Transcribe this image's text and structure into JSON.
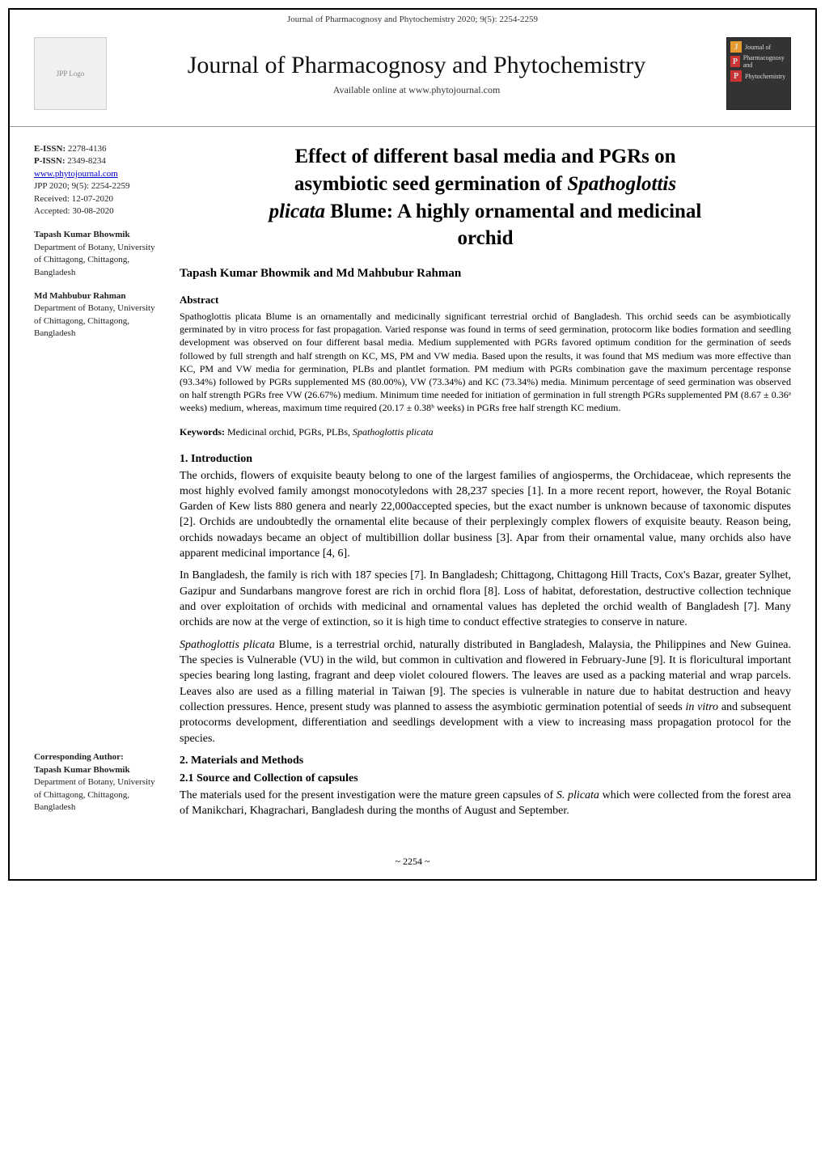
{
  "running_header": "Journal of Pharmacognosy and Phytochemistry 2020; 9(5): 2254-2259",
  "masthead": {
    "journal_title": "Journal of Pharmacognosy and Phytochemistry",
    "available_line": "Available online at  www.phytojournal.com",
    "logo_left_alt": "JPP Logo",
    "badge_j": "J",
    "badge_p1": "P",
    "badge_p2": "P",
    "badge_text1": "Journal of",
    "badge_text2": "Pharmacognosy and",
    "badge_text3": "Phytochemistry"
  },
  "sidebar": {
    "eissn_label": "E-ISSN:",
    "eissn": "2278-4136",
    "pissn_label": "P-ISSN:",
    "pissn": "2349-8234",
    "website": "www.phytojournal.com",
    "citation": "JPP 2020; 9(5): 2254-2259",
    "received": "Received: 12-07-2020",
    "accepted": "Accepted: 30-08-2020",
    "author1_name": "Tapash Kumar Bhowmik",
    "author1_affil": "Department of Botany, University of Chittagong, Chittagong, Bangladesh",
    "author2_name": "Md Mahbubur Rahman",
    "author2_affil": "Department of Botany, University of Chittagong, Chittagong, Bangladesh",
    "corr_label": "Corresponding Author:",
    "corr_name": "Tapash Kumar Bhowmik",
    "corr_affil": "Department of Botany, University of Chittagong, Chittagong, Bangladesh"
  },
  "article": {
    "title_l1": "Effect of different basal media and PGRs on",
    "title_l2": "asymbiotic seed germination of ",
    "title_species": "Spathoglottis",
    "title_l3_species": "plicata",
    "title_l3_rest": " Blume: A highly ornamental and medicinal",
    "title_l4": "orchid",
    "authors": "Tapash Kumar Bhowmik and Md Mahbubur Rahman",
    "abstract_head": "Abstract",
    "abstract_body": "Spathoglottis plicata Blume is an ornamentally and medicinally significant terrestrial orchid of Bangladesh. This orchid seeds can be asymbiotically germinated by in vitro process for fast propagation. Varied response was found in terms of seed germination, protocorm like bodies formation and seedling development was observed on four different basal media. Medium supplemented with PGRs favored optimum condition for the germination of seeds followed by full strength and half strength on KC, MS, PM and VW media. Based upon the results, it was found that MS medium was more effective than KC, PM and VW media for germination, PLBs and plantlet formation. PM medium with PGRs combination gave the maximum percentage response (93.34%) followed by PGRs supplemented MS (80.00%), VW (73.34%) and KC (73.34%) media. Minimum percentage of seed germination was observed on half strength PGRs free VW (26.67%) medium. Minimum time needed for initiation of germination in full strength PGRs supplemented PM (8.67 ± 0.36ᵃ weeks) medium, whereas, maximum time required (20.17 ± 0.38ʰ weeks) in PGRs free half strength KC medium.",
    "keywords_label": "Keywords:",
    "keywords_text": " Medicinal orchid, PGRs, PLBs, ",
    "keywords_species": "Spathoglottis plicata",
    "intro_head": "1. Introduction",
    "intro_p1": "The orchids, flowers of exquisite beauty belong to one of the largest families of angiosperms, the Orchidaceae, which represents the most highly evolved family amongst monocotyledons with 28,237 species [1]. In a more recent report, however, the Royal Botanic Garden of Kew lists 880 genera and nearly 22,000accepted species, but the exact number is unknown because of taxonomic disputes [2]. Orchids are undoubtedly the ornamental elite because of their perplexingly complex flowers of exquisite beauty. Reason being, orchids nowadays became an object of multibillion dollar business [3]. Apar from their ornamental value, many orchids also have apparent medicinal importance [4, 6].",
    "intro_p2": "In Bangladesh, the family is rich with 187 species [7]. In Bangladesh; Chittagong, Chittagong Hill Tracts, Cox's Bazar, greater Sylhet, Gazipur and Sundarbans mangrove forest are rich in orchid flora [8]. Loss of habitat, deforestation, destructive collection technique and over exploitation of orchids with medicinal and ornamental values has depleted the orchid wealth of Bangladesh [7]. Many orchids are now at the verge of extinction, so it is high time to conduct effective strategies to conserve in nature.",
    "intro_p3a": "Spathoglottis plicata",
    "intro_p3b": " Blume, is a terrestrial orchid, naturally distributed in Bangladesh, Malaysia, the Philippines and New Guinea. The species is Vulnerable (VU) in the wild, but common in cultivation and flowered in February-June [9]. It is floricultural important species bearing long lasting, fragrant and deep violet coloured flowers. The leaves are used as a packing material and wrap parcels. Leaves also are used as a filling material in Taiwan [9]. The species is vulnerable in nature due to habitat destruction and heavy collection pressures. Hence, present study was planned to assess the asymbiotic germination potential of seeds ",
    "intro_p3c": "in vitro",
    "intro_p3d": " and subsequent protocorms development, differentiation and seedlings development with a view to increasing mass propagation protocol for the species.",
    "mm_head": "2. Materials and Methods",
    "mm_subhead": "2.1 Source and Collection of capsules",
    "mm_p1a": "The materials used for the present investigation were the mature green capsules of ",
    "mm_p1b": "S. plicata",
    "mm_p1c": " which were collected from the forest area of Manikchari, Khagrachari, Bangladesh during the months of August and September."
  },
  "page_number": "~ 2254 ~"
}
